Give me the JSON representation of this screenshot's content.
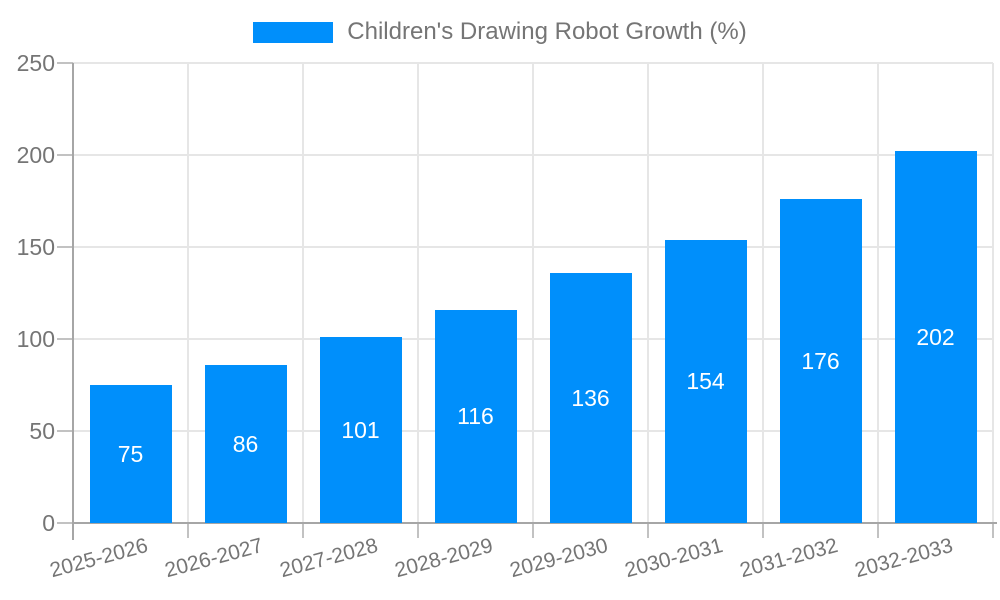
{
  "chart_data": {
    "type": "bar",
    "title": "Children's Drawing Robot Growth (%)",
    "categories": [
      "2025-2026",
      "2026-2027",
      "2027-2028",
      "2028-2029",
      "2029-2030",
      "2030-2031",
      "2031-2032",
      "2032-2033"
    ],
    "values": [
      75,
      86,
      101,
      116,
      136,
      154,
      176,
      202
    ],
    "xlabel": "",
    "ylabel": "",
    "ylim": [
      0,
      250
    ],
    "yticks": [
      0,
      50,
      100,
      150,
      200,
      250
    ],
    "grid": true,
    "legend_position": "top-center",
    "data_labels": "inside bars, vertically centered, white"
  },
  "legend": {
    "series_label": "Children's Drawing Robot Growth (%)"
  },
  "colors": {
    "bar": "#008FFB",
    "grid": "#e6e6e6",
    "axis": "#a6a6a6",
    "tick": "#c2c2c2",
    "text": "#757575",
    "bar_label": "#ffffff"
  }
}
